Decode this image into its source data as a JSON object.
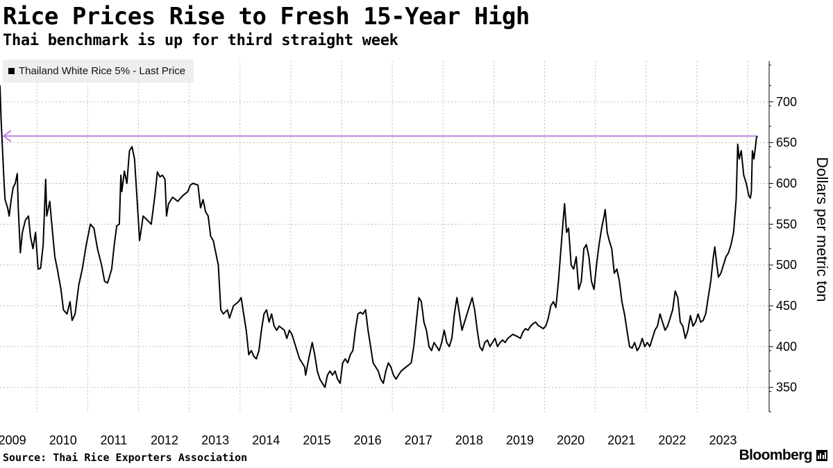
{
  "title": "Rice Prices Rise to Fresh 15-Year High",
  "subtitle": "Thai benchmark is up for third straight week",
  "legend_label": "Thailand White Rice 5% - Last Price",
  "source": "Source: Thai Rice Exporters Association",
  "brand": "Bloomberg",
  "colors": {
    "line": "#000000",
    "reference_arrow": "#c27ee0",
    "grid": "#bbbbbb",
    "legend_bg": "#eeeeee"
  },
  "chart_data": {
    "type": "line",
    "title": "Rice Prices Rise to Fresh 15-Year High",
    "subtitle": "Thai benchmark is up for third straight week",
    "xlabel": "",
    "ylabel": "Dollars per metric ton",
    "y_axis_side": "right",
    "ylim": [
      320,
      750
    ],
    "y_ticks": [
      350,
      400,
      450,
      500,
      550,
      600,
      650,
      700
    ],
    "x_ticks": [
      "2009",
      "2010",
      "2011",
      "2012",
      "2013",
      "2014",
      "2015",
      "2016",
      "2017",
      "2018",
      "2019",
      "2020",
      "2021",
      "2022",
      "2023"
    ],
    "xlim": [
      2008.8,
      2023.95
    ],
    "grid": true,
    "legend_position": "top-left",
    "series": [
      {
        "name": "Thailand White Rice 5% - Last Price",
        "points": [
          [
            2008.8,
            720
          ],
          [
            2008.82,
            680
          ],
          [
            2008.85,
            640
          ],
          [
            2008.88,
            600
          ],
          [
            2008.9,
            580
          ],
          [
            2008.95,
            570
          ],
          [
            2008.98,
            560
          ],
          [
            2009.02,
            580
          ],
          [
            2009.06,
            595
          ],
          [
            2009.1,
            600
          ],
          [
            2009.14,
            612
          ],
          [
            2009.16,
            570
          ],
          [
            2009.2,
            515
          ],
          [
            2009.24,
            540
          ],
          [
            2009.3,
            555
          ],
          [
            2009.36,
            560
          ],
          [
            2009.4,
            535
          ],
          [
            2009.45,
            520
          ],
          [
            2009.5,
            540
          ],
          [
            2009.55,
            495
          ],
          [
            2009.6,
            496
          ],
          [
            2009.65,
            525
          ],
          [
            2009.7,
            605
          ],
          [
            2009.72,
            560
          ],
          [
            2009.78,
            578
          ],
          [
            2009.82,
            550
          ],
          [
            2009.88,
            510
          ],
          [
            2009.93,
            495
          ],
          [
            2010.0,
            470
          ],
          [
            2010.05,
            445
          ],
          [
            2010.12,
            440
          ],
          [
            2010.18,
            455
          ],
          [
            2010.22,
            432
          ],
          [
            2010.28,
            440
          ],
          [
            2010.35,
            475
          ],
          [
            2010.42,
            495
          ],
          [
            2010.5,
            525
          ],
          [
            2010.58,
            550
          ],
          [
            2010.65,
            545
          ],
          [
            2010.72,
            520
          ],
          [
            2010.8,
            500
          ],
          [
            2010.86,
            480
          ],
          [
            2010.92,
            478
          ],
          [
            2011.0,
            495
          ],
          [
            2011.05,
            525
          ],
          [
            2011.1,
            548
          ],
          [
            2011.15,
            550
          ],
          [
            2011.18,
            610
          ],
          [
            2011.2,
            590
          ],
          [
            2011.25,
            615
          ],
          [
            2011.3,
            600
          ],
          [
            2011.35,
            640
          ],
          [
            2011.4,
            645
          ],
          [
            2011.45,
            630
          ],
          [
            2011.5,
            580
          ],
          [
            2011.55,
            530
          ],
          [
            2011.62,
            560
          ],
          [
            2011.7,
            555
          ],
          [
            2011.78,
            550
          ],
          [
            2011.85,
            585
          ],
          [
            2011.9,
            614
          ],
          [
            2011.95,
            608
          ],
          [
            2012.0,
            610
          ],
          [
            2012.05,
            605
          ],
          [
            2012.08,
            560
          ],
          [
            2012.12,
            575
          ],
          [
            2012.2,
            583
          ],
          [
            2012.3,
            578
          ],
          [
            2012.4,
            585
          ],
          [
            2012.5,
            590
          ],
          [
            2012.55,
            598
          ],
          [
            2012.6,
            600
          ],
          [
            2012.7,
            598
          ],
          [
            2012.75,
            570
          ],
          [
            2012.8,
            580
          ],
          [
            2012.85,
            565
          ],
          [
            2012.9,
            560
          ],
          [
            2012.95,
            535
          ],
          [
            2013.0,
            530
          ],
          [
            2013.1,
            500
          ],
          [
            2013.15,
            445
          ],
          [
            2013.2,
            440
          ],
          [
            2013.28,
            445
          ],
          [
            2013.32,
            435
          ],
          [
            2013.4,
            450
          ],
          [
            2013.5,
            455
          ],
          [
            2013.55,
            460
          ],
          [
            2013.6,
            440
          ],
          [
            2013.65,
            420
          ],
          [
            2013.7,
            390
          ],
          [
            2013.75,
            395
          ],
          [
            2013.8,
            388
          ],
          [
            2013.85,
            385
          ],
          [
            2013.9,
            395
          ],
          [
            2013.95,
            420
          ],
          [
            2014.0,
            440
          ],
          [
            2014.05,
            445
          ],
          [
            2014.1,
            430
          ],
          [
            2014.15,
            440
          ],
          [
            2014.2,
            425
          ],
          [
            2014.25,
            420
          ],
          [
            2014.3,
            425
          ],
          [
            2014.4,
            420
          ],
          [
            2014.45,
            410
          ],
          [
            2014.5,
            420
          ],
          [
            2014.55,
            415
          ],
          [
            2014.6,
            405
          ],
          [
            2014.65,
            395
          ],
          [
            2014.7,
            385
          ],
          [
            2014.75,
            380
          ],
          [
            2014.8,
            375
          ],
          [
            2014.82,
            365
          ],
          [
            2014.88,
            385
          ],
          [
            2014.95,
            405
          ],
          [
            2015.0,
            390
          ],
          [
            2015.05,
            370
          ],
          [
            2015.1,
            360
          ],
          [
            2015.15,
            355
          ],
          [
            2015.2,
            350
          ],
          [
            2015.25,
            365
          ],
          [
            2015.3,
            370
          ],
          [
            2015.35,
            365
          ],
          [
            2015.4,
            370
          ],
          [
            2015.45,
            360
          ],
          [
            2015.5,
            355
          ],
          [
            2015.55,
            380
          ],
          [
            2015.6,
            385
          ],
          [
            2015.65,
            380
          ],
          [
            2015.7,
            390
          ],
          [
            2015.75,
            395
          ],
          [
            2015.8,
            420
          ],
          [
            2015.85,
            440
          ],
          [
            2015.9,
            442
          ],
          [
            2015.95,
            440
          ],
          [
            2016.0,
            445
          ],
          [
            2016.05,
            420
          ],
          [
            2016.1,
            400
          ],
          [
            2016.15,
            380
          ],
          [
            2016.2,
            375
          ],
          [
            2016.25,
            370
          ],
          [
            2016.3,
            360
          ],
          [
            2016.35,
            355
          ],
          [
            2016.4,
            370
          ],
          [
            2016.45,
            380
          ],
          [
            2016.5,
            375
          ],
          [
            2016.55,
            365
          ],
          [
            2016.6,
            360
          ],
          [
            2016.65,
            365
          ],
          [
            2016.7,
            370
          ],
          [
            2016.8,
            375
          ],
          [
            2016.9,
            380
          ],
          [
            2016.95,
            400
          ],
          [
            2017.0,
            430
          ],
          [
            2017.05,
            460
          ],
          [
            2017.1,
            455
          ],
          [
            2017.15,
            430
          ],
          [
            2017.2,
            420
          ],
          [
            2017.25,
            400
          ],
          [
            2017.3,
            395
          ],
          [
            2017.35,
            405
          ],
          [
            2017.4,
            400
          ],
          [
            2017.45,
            395
          ],
          [
            2017.5,
            405
          ],
          [
            2017.55,
            420
          ],
          [
            2017.6,
            405
          ],
          [
            2017.65,
            400
          ],
          [
            2017.7,
            410
          ],
          [
            2017.75,
            440
          ],
          [
            2017.8,
            460
          ],
          [
            2017.85,
            440
          ],
          [
            2017.9,
            420
          ],
          [
            2017.95,
            430
          ],
          [
            2018.0,
            440
          ],
          [
            2018.05,
            450
          ],
          [
            2018.1,
            460
          ],
          [
            2018.15,
            445
          ],
          [
            2018.2,
            420
          ],
          [
            2018.25,
            400
          ],
          [
            2018.3,
            395
          ],
          [
            2018.35,
            405
          ],
          [
            2018.4,
            408
          ],
          [
            2018.45,
            400
          ],
          [
            2018.5,
            405
          ],
          [
            2018.55,
            410
          ],
          [
            2018.6,
            400
          ],
          [
            2018.65,
            405
          ],
          [
            2018.7,
            408
          ],
          [
            2018.75,
            405
          ],
          [
            2018.8,
            410
          ],
          [
            2018.9,
            415
          ],
          [
            2019.0,
            412
          ],
          [
            2019.05,
            410
          ],
          [
            2019.1,
            418
          ],
          [
            2019.15,
            422
          ],
          [
            2019.2,
            420
          ],
          [
            2019.25,
            425
          ],
          [
            2019.3,
            428
          ],
          [
            2019.35,
            430
          ],
          [
            2019.4,
            426
          ],
          [
            2019.45,
            424
          ],
          [
            2019.5,
            422
          ],
          [
            2019.55,
            425
          ],
          [
            2019.6,
            435
          ],
          [
            2019.65,
            450
          ],
          [
            2019.7,
            455
          ],
          [
            2019.75,
            448
          ],
          [
            2019.8,
            480
          ],
          [
            2019.85,
            520
          ],
          [
            2019.9,
            560
          ],
          [
            2019.92,
            575
          ],
          [
            2019.96,
            540
          ],
          [
            2020.0,
            545
          ],
          [
            2020.05,
            500
          ],
          [
            2020.1,
            495
          ],
          [
            2020.15,
            510
          ],
          [
            2020.2,
            470
          ],
          [
            2020.25,
            480
          ],
          [
            2020.3,
            520
          ],
          [
            2020.35,
            525
          ],
          [
            2020.4,
            510
          ],
          [
            2020.45,
            480
          ],
          [
            2020.5,
            470
          ],
          [
            2020.55,
            500
          ],
          [
            2020.6,
            525
          ],
          [
            2020.65,
            545
          ],
          [
            2020.7,
            560
          ],
          [
            2020.72,
            568
          ],
          [
            2020.76,
            540
          ],
          [
            2020.8,
            530
          ],
          [
            2020.85,
            520
          ],
          [
            2020.9,
            490
          ],
          [
            2020.95,
            495
          ],
          [
            2021.0,
            480
          ],
          [
            2021.05,
            455
          ],
          [
            2021.1,
            440
          ],
          [
            2021.15,
            420
          ],
          [
            2021.2,
            400
          ],
          [
            2021.25,
            398
          ],
          [
            2021.3,
            405
          ],
          [
            2021.35,
            395
          ],
          [
            2021.4,
            400
          ],
          [
            2021.45,
            410
          ],
          [
            2021.5,
            400
          ],
          [
            2021.55,
            405
          ],
          [
            2021.6,
            400
          ],
          [
            2021.65,
            410
          ],
          [
            2021.7,
            420
          ],
          [
            2021.75,
            425
          ],
          [
            2021.8,
            440
          ],
          [
            2021.85,
            430
          ],
          [
            2021.9,
            420
          ],
          [
            2021.95,
            425
          ],
          [
            2022.0,
            435
          ],
          [
            2022.05,
            445
          ],
          [
            2022.1,
            468
          ],
          [
            2022.15,
            460
          ],
          [
            2022.2,
            430
          ],
          [
            2022.25,
            425
          ],
          [
            2022.3,
            410
          ],
          [
            2022.35,
            420
          ],
          [
            2022.4,
            438
          ],
          [
            2022.45,
            425
          ],
          [
            2022.5,
            430
          ],
          [
            2022.55,
            440
          ],
          [
            2022.6,
            430
          ],
          [
            2022.65,
            432
          ],
          [
            2022.7,
            440
          ],
          [
            2022.75,
            460
          ],
          [
            2022.8,
            480
          ],
          [
            2022.85,
            510
          ],
          [
            2022.88,
            522
          ],
          [
            2022.92,
            500
          ],
          [
            2022.95,
            485
          ],
          [
            2023.0,
            490
          ],
          [
            2023.05,
            500
          ],
          [
            2023.1,
            510
          ],
          [
            2023.15,
            515
          ],
          [
            2023.2,
            525
          ],
          [
            2023.25,
            540
          ],
          [
            2023.3,
            580
          ],
          [
            2023.33,
            648
          ],
          [
            2023.36,
            630
          ],
          [
            2023.4,
            640
          ],
          [
            2023.45,
            610
          ],
          [
            2023.5,
            600
          ],
          [
            2023.55,
            585
          ],
          [
            2023.58,
            582
          ],
          [
            2023.6,
            590
          ],
          [
            2023.62,
            640
          ],
          [
            2023.65,
            630
          ],
          [
            2023.68,
            645
          ],
          [
            2023.7,
            656
          ],
          [
            2023.72,
            658
          ]
        ]
      }
    ],
    "reference_line": {
      "y": 658,
      "direction": "left",
      "color": "#c27ee0"
    }
  }
}
